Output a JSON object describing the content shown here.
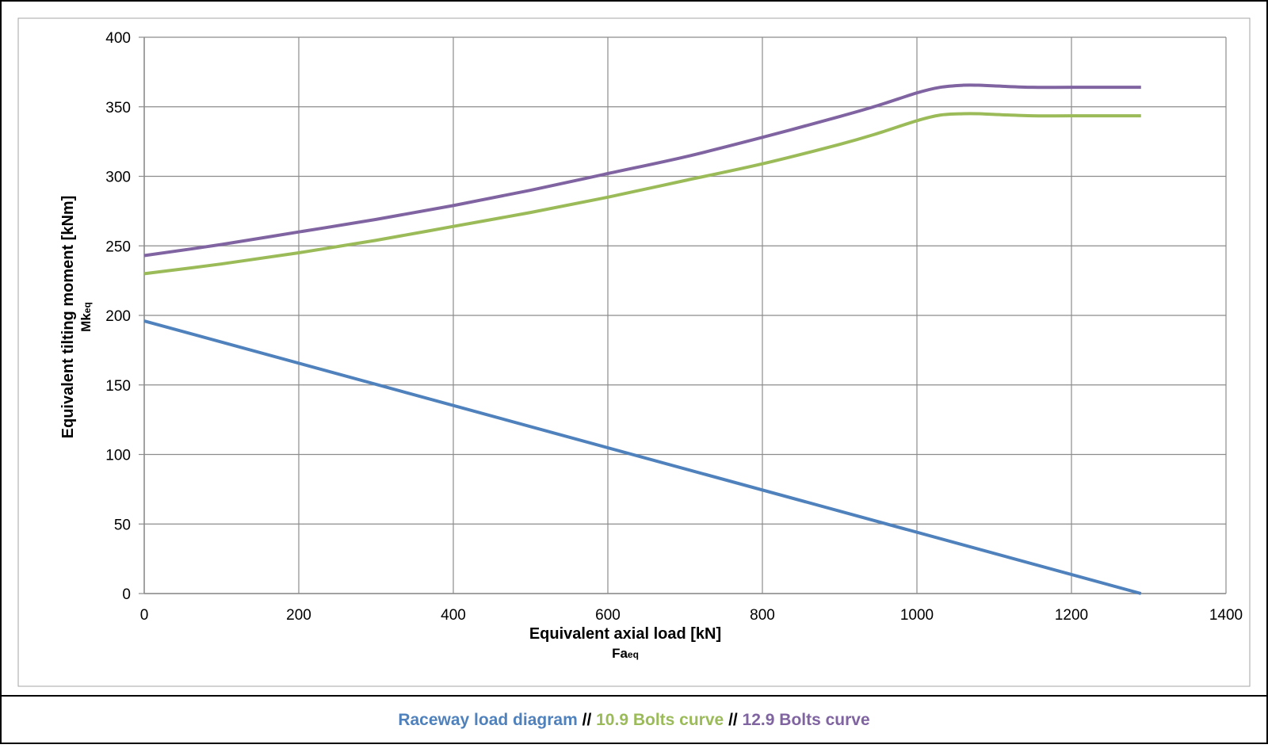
{
  "chart_data": {
    "type": "line",
    "xlabel": "Equivalent axial load [kN]",
    "xlabel_sub_main": "Fa",
    "xlabel_sub_script": "eq",
    "ylabel": "Equivalent tilting moment [kNm]",
    "ylabel_sub_main": "Mk",
    "ylabel_sub_script": "eq",
    "xlim": [
      0,
      1400
    ],
    "ylim": [
      0,
      400
    ],
    "x_ticks": [
      0,
      200,
      400,
      600,
      800,
      1000,
      1200,
      1400
    ],
    "y_ticks": [
      0,
      50,
      100,
      150,
      200,
      250,
      300,
      350,
      400
    ],
    "grid": true,
    "legend_position": "bottom",
    "legend_separator": "//",
    "series": [
      {
        "name": "Raceway load diagram",
        "color": "#4F81BD",
        "x": [
          0,
          1290
        ],
        "y": [
          196,
          0
        ]
      },
      {
        "name": "10.9 Bolts curve",
        "color": "#9BBB59",
        "x": [
          0,
          100,
          200,
          300,
          400,
          500,
          600,
          700,
          800,
          900,
          950,
          1000,
          1030,
          1060,
          1080,
          1100,
          1150,
          1200,
          1290
        ],
        "y": [
          230,
          237,
          245,
          254,
          264,
          274,
          285,
          297,
          309,
          323,
          331,
          340,
          344,
          345,
          345,
          344.5,
          343.5,
          343.5,
          343.5
        ]
      },
      {
        "name": "12.9 Bolts curve",
        "color": "#8064A2",
        "x": [
          0,
          100,
          200,
          300,
          400,
          500,
          600,
          700,
          800,
          900,
          950,
          1000,
          1030,
          1060,
          1080,
          1100,
          1150,
          1200,
          1290
        ],
        "y": [
          243,
          251,
          260,
          269,
          279,
          290,
          302,
          314,
          328,
          343,
          351,
          360,
          364,
          365.5,
          365.5,
          365,
          364,
          364,
          364
        ]
      }
    ]
  }
}
